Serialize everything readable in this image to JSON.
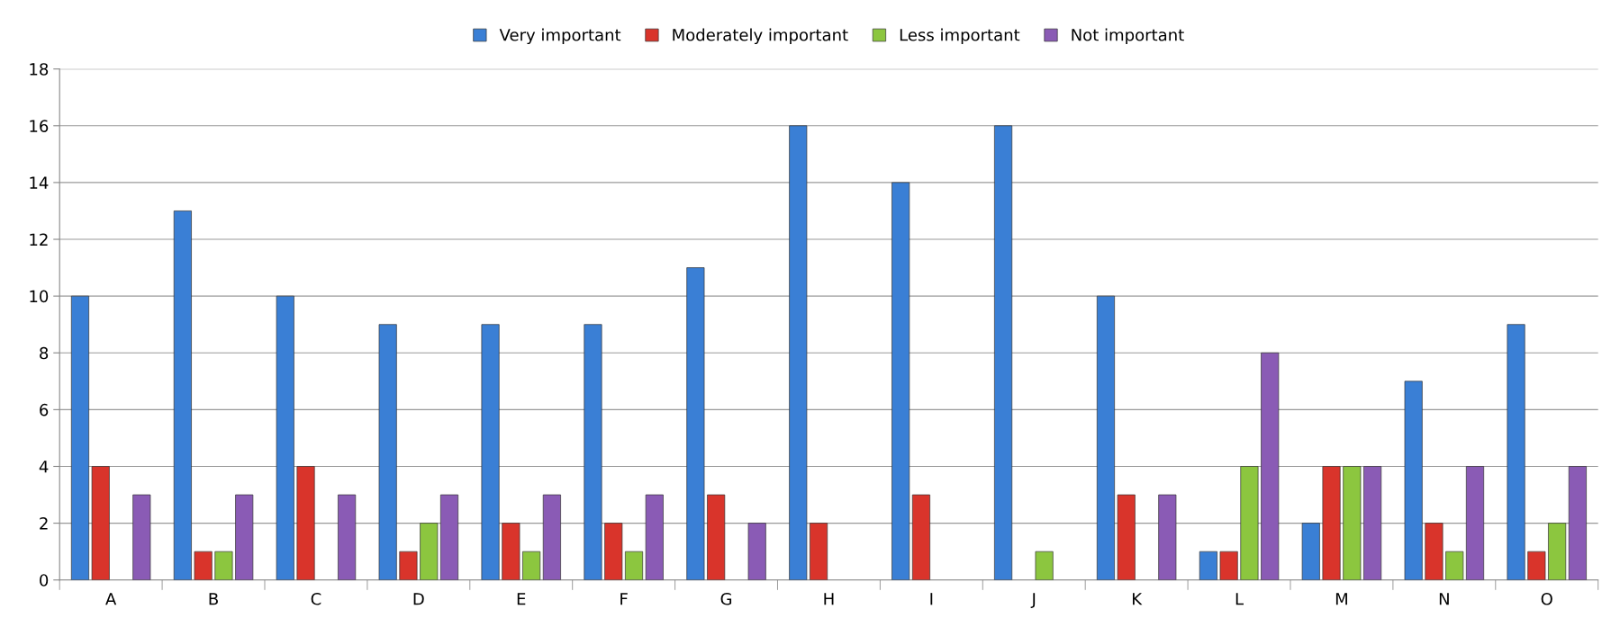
{
  "chart_data": {
    "type": "bar",
    "categories": [
      "A",
      "B",
      "C",
      "D",
      "E",
      "F",
      "G",
      "H",
      "I",
      "J",
      "K",
      "L",
      "M",
      "N",
      "O"
    ],
    "series": [
      {
        "name": "Very important",
        "color": "#3a7fd5",
        "values": [
          10,
          13,
          10,
          9,
          9,
          9,
          11,
          16,
          14,
          16,
          10,
          1,
          2,
          7,
          9
        ]
      },
      {
        "name": "Moderately important",
        "color": "#d9342b",
        "values": [
          4,
          1,
          4,
          1,
          2,
          2,
          3,
          2,
          3,
          0,
          3,
          1,
          4,
          2,
          1
        ]
      },
      {
        "name": "Less important",
        "color": "#8cc63f",
        "values": [
          0,
          1,
          0,
          2,
          1,
          1,
          0,
          0,
          0,
          1,
          0,
          4,
          4,
          1,
          2
        ]
      },
      {
        "name": "Not important",
        "color": "#8a5bb5",
        "values": [
          3,
          3,
          3,
          3,
          3,
          3,
          2,
          0,
          0,
          0,
          3,
          8,
          4,
          4,
          4
        ]
      }
    ],
    "ylim": [
      0,
      18
    ],
    "yticks": [
      0,
      2,
      4,
      6,
      8,
      10,
      12,
      14,
      16,
      18
    ],
    "grid": "y",
    "legend": "top"
  }
}
